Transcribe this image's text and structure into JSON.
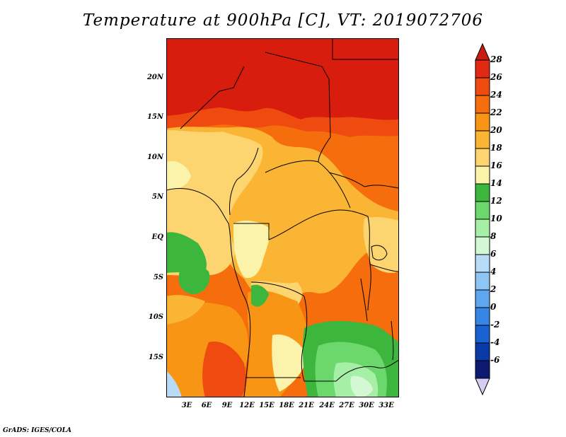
{
  "title": "Temperature at 900hPa [C], VT: 2019072706",
  "credit": "GrADS: IGES/COLA",
  "lat_labels": [
    "20N",
    "15N",
    "10N",
    "5N",
    "EQ",
    "5S",
    "10S",
    "15S"
  ],
  "lon_labels": [
    "3E",
    "6E",
    "9E",
    "12E",
    "15E",
    "18E",
    "21E",
    "24E",
    "27E",
    "30E",
    "33E"
  ],
  "colorbar": {
    "labels": [
      "28",
      "26",
      "24",
      "22",
      "20",
      "18",
      "16",
      "14",
      "12",
      "10",
      "8",
      "6",
      "4",
      "2",
      "0",
      "-2",
      "-4",
      "-6"
    ],
    "colors_top_to_bottom": [
      "#e02a14",
      "#ef4a10",
      "#f56d0c",
      "#f99515",
      "#fbb535",
      "#fcd570",
      "#fbf3a9",
      "#3cb63c",
      "#6cd76c",
      "#a6efa6",
      "#d4f8d4",
      "#b8dcf8",
      "#8ec5f5",
      "#5ea7ef",
      "#3786e6",
      "#1962d2",
      "#0a3aa8",
      "#0c1a72"
    ],
    "arrow_top_color": "#c81c12",
    "arrow_bottom_color": "#d8ccf2"
  },
  "map_colors": {
    "hot": "#d81c0e",
    "veryWarm": "#ef4a10",
    "warm": "#f56d0c",
    "orange": "#f99515",
    "lightOrange": "#fbb535",
    "yellow": "#fcd570",
    "paleYellow": "#fbf3a9",
    "green": "#3cb63c",
    "lightGreen": "#6cd76c",
    "paleGreen": "#a6efa6",
    "veryPaleGreen": "#d4f8d4",
    "paleBlue": "#b8dcf8"
  }
}
